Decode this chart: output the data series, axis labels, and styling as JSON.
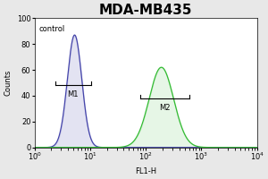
{
  "title": "MDA-MB435",
  "xlabel": "FL1-H",
  "ylabel": "Counts",
  "ylim": [
    0,
    100
  ],
  "xlim_log": [
    1.0,
    10000.0
  ],
  "control_label": "control",
  "m1_label": "M1",
  "m2_label": "M2",
  "blue_color": "#4444aa",
  "green_color": "#33bb33",
  "bg_color": "#e8e8e8",
  "plot_bg": "#ffffff",
  "title_fontsize": 11,
  "axis_fontsize": 6,
  "label_fontsize": 6,
  "blue_peak_log": 0.72,
  "blue_peak_height": 87,
  "blue_sigma_log": 0.13,
  "green_peak_log": 2.28,
  "green_peak_height": 62,
  "green_sigma_log": 0.22,
  "yticks": [
    0,
    20,
    40,
    60,
    80,
    100
  ]
}
